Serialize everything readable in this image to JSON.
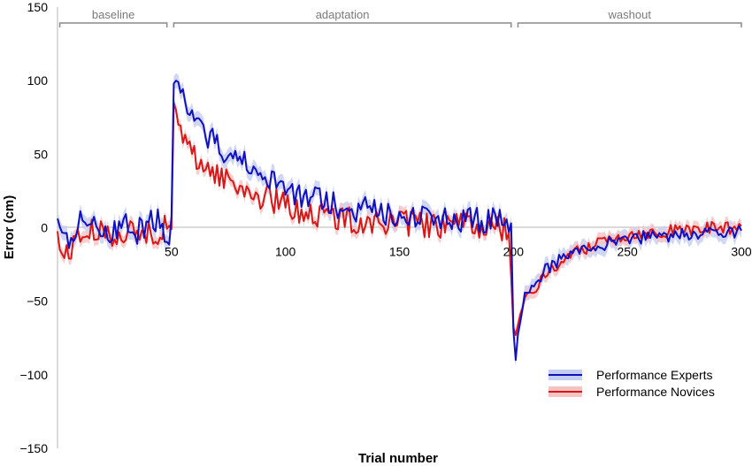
{
  "chart_data": {
    "type": "line",
    "xlabel": "Trial number",
    "ylabel": "Error (cm)",
    "xlim": [
      0,
      300
    ],
    "ylim": [
      -150,
      150
    ],
    "x_ticks": [
      50,
      100,
      150,
      200,
      250,
      300
    ],
    "x_tick_labels": [
      "50",
      "100",
      "150",
      "200",
      "250",
      "300"
    ],
    "y_ticks": [
      150,
      100,
      50,
      0,
      -50,
      -100,
      -150
    ],
    "y_tick_labels": [
      "150",
      "100",
      "50",
      "0",
      "−50",
      "−100",
      "−150"
    ],
    "zero_line": true,
    "grid": false,
    "legend_position": "bottom-right",
    "phases": [
      {
        "label": "baseline",
        "x_start": 1,
        "x_end": 48
      },
      {
        "label": "adaptation",
        "x_start": 51,
        "x_end": 199
      },
      {
        "label": "washout",
        "x_start": 202,
        "x_end": 300
      }
    ],
    "series": [
      {
        "name": "Performance Experts",
        "color": "#1010c0",
        "band_color": "#c4cdf2",
        "band_halfwidth": 5,
        "anchors": [
          [
            0,
            10
          ],
          [
            1,
            -3
          ],
          [
            3,
            -8
          ],
          [
            6,
            -5
          ],
          [
            10,
            3
          ],
          [
            14,
            6
          ],
          [
            18,
            2
          ],
          [
            22,
            -3
          ],
          [
            26,
            0
          ],
          [
            30,
            3
          ],
          [
            34,
            -4
          ],
          [
            38,
            1
          ],
          [
            42,
            4
          ],
          [
            45,
            8
          ],
          [
            47,
            -2
          ],
          [
            49,
            -3
          ],
          [
            50,
            8
          ],
          [
            51,
            98
          ],
          [
            52,
            100
          ],
          [
            53,
            99
          ],
          [
            54,
            92
          ],
          [
            56,
            80
          ],
          [
            58,
            74
          ],
          [
            60,
            70
          ],
          [
            65,
            63
          ],
          [
            70,
            57
          ],
          [
            75,
            50
          ],
          [
            80,
            45
          ],
          [
            85,
            40
          ],
          [
            90,
            35
          ],
          [
            95,
            30
          ],
          [
            100,
            26
          ],
          [
            110,
            20
          ],
          [
            120,
            16
          ],
          [
            130,
            13
          ],
          [
            140,
            11
          ],
          [
            150,
            9
          ],
          [
            160,
            8
          ],
          [
            170,
            6
          ],
          [
            180,
            5
          ],
          [
            190,
            5
          ],
          [
            197,
            5
          ],
          [
            199,
            3
          ],
          [
            200,
            -70
          ],
          [
            201,
            -90
          ],
          [
            202,
            -72
          ],
          [
            203,
            -60
          ],
          [
            205,
            -47
          ],
          [
            207,
            -43
          ],
          [
            210,
            -38
          ],
          [
            213,
            -30
          ],
          [
            217,
            -25
          ],
          [
            220,
            -22
          ],
          [
            225,
            -18
          ],
          [
            230,
            -15
          ],
          [
            235,
            -13
          ],
          [
            240,
            -11
          ],
          [
            250,
            -8
          ],
          [
            260,
            -6
          ],
          [
            270,
            -5
          ],
          [
            280,
            -4
          ],
          [
            290,
            -3
          ],
          [
            300,
            -2
          ]
        ]
      },
      {
        "name": "Performance Novices",
        "color": "#d81818",
        "band_color": "#f6c3c3",
        "band_halfwidth": 4,
        "anchors": [
          [
            0,
            -5
          ],
          [
            1,
            -12
          ],
          [
            3,
            -20
          ],
          [
            5,
            -16
          ],
          [
            8,
            -8
          ],
          [
            12,
            -4
          ],
          [
            16,
            -3
          ],
          [
            20,
            -5
          ],
          [
            25,
            -4
          ],
          [
            30,
            -2
          ],
          [
            35,
            -5
          ],
          [
            40,
            -3
          ],
          [
            45,
            -2
          ],
          [
            48,
            0
          ],
          [
            50,
            -1
          ],
          [
            51,
            85
          ],
          [
            52,
            80
          ],
          [
            53,
            70
          ],
          [
            55,
            62
          ],
          [
            57,
            55
          ],
          [
            60,
            48
          ],
          [
            65,
            42
          ],
          [
            70,
            36
          ],
          [
            75,
            32
          ],
          [
            80,
            28
          ],
          [
            85,
            24
          ],
          [
            90,
            21
          ],
          [
            95,
            18
          ],
          [
            100,
            15
          ],
          [
            110,
            10
          ],
          [
            120,
            7
          ],
          [
            130,
            5
          ],
          [
            140,
            4
          ],
          [
            150,
            3
          ],
          [
            160,
            2
          ],
          [
            170,
            1
          ],
          [
            180,
            1
          ],
          [
            190,
            0
          ],
          [
            198,
            0
          ],
          [
            200,
            -68
          ],
          [
            201,
            -73
          ],
          [
            202,
            -66
          ],
          [
            203,
            -60
          ],
          [
            205,
            -52
          ],
          [
            207,
            -46
          ],
          [
            210,
            -40
          ],
          [
            213,
            -34
          ],
          [
            217,
            -28
          ],
          [
            220,
            -24
          ],
          [
            225,
            -19
          ],
          [
            230,
            -15
          ],
          [
            235,
            -11
          ],
          [
            240,
            -8
          ],
          [
            250,
            -5
          ],
          [
            260,
            -3
          ],
          [
            270,
            -2
          ],
          [
            280,
            -1
          ],
          [
            290,
            0
          ],
          [
            300,
            0
          ]
        ]
      }
    ]
  }
}
